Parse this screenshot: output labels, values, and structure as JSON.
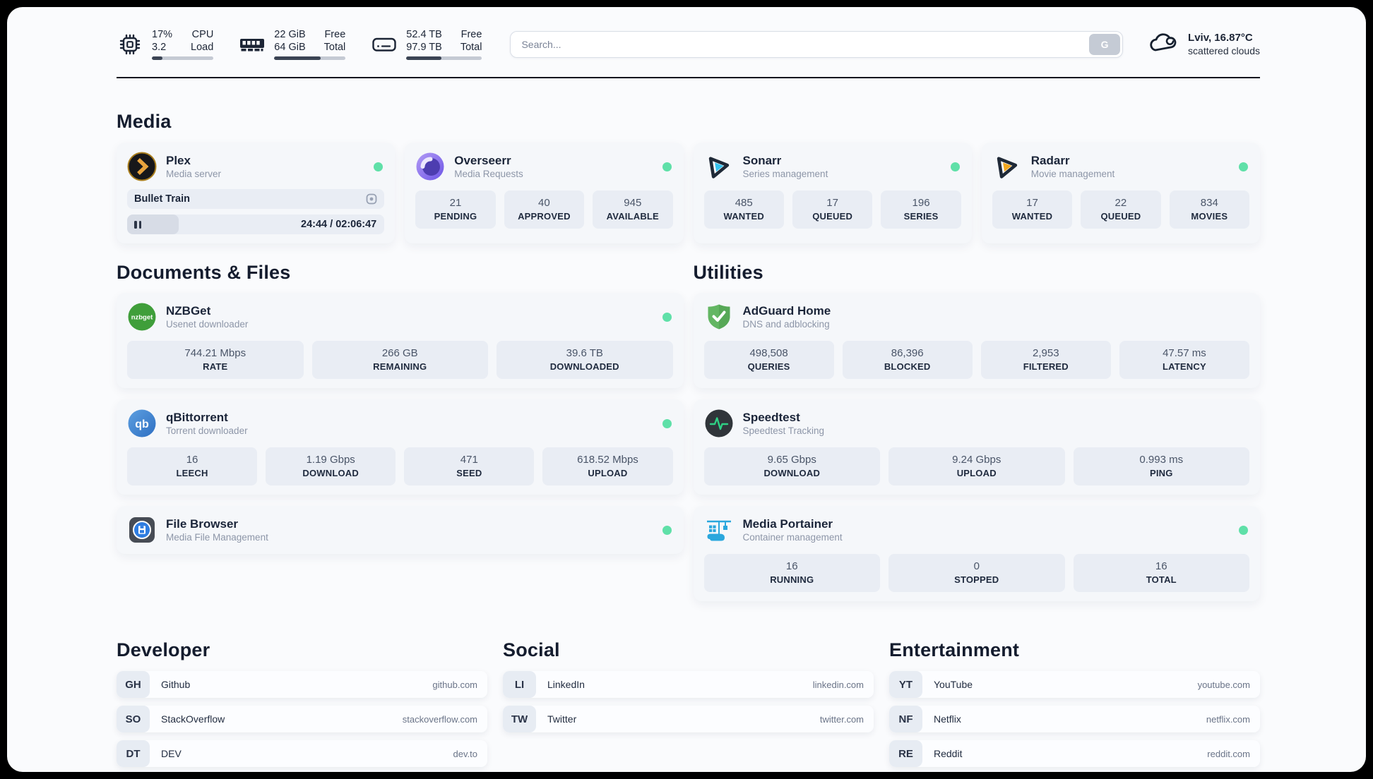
{
  "colors": {
    "page-bg": "#fafbfd",
    "card-bg": "#f5f7fa",
    "tile-bg": "#e9edf4",
    "text-dark": "#1c2536",
    "text-muted": "#8d96a8",
    "status-online": "#5fe0a8",
    "bar-track": "#c5cad4",
    "bar-fill": "#3b4454",
    "divider": "#10151e"
  },
  "header": {
    "stats": [
      {
        "name": "cpu",
        "v1": "17%",
        "v2": "3.2",
        "l1": "CPU",
        "l2": "Load",
        "progress": 17
      },
      {
        "name": "memory",
        "v1": "22 GiB",
        "v2": "64 GiB",
        "l1": "Free",
        "l2": "Total",
        "progress": 65
      },
      {
        "name": "disk",
        "v1": "52.4 TB",
        "v2": "97.9 TB",
        "l1": "Free",
        "l2": "Total",
        "progress": 46
      }
    ],
    "search": {
      "placeholder": "Search...",
      "button_label": "G"
    },
    "weather": {
      "location": "Lviv, 16.87°C",
      "condition": "scattered clouds"
    }
  },
  "media": {
    "title": "Media",
    "plex": {
      "name": "Plex",
      "desc": "Media server",
      "now_playing": "Bullet Train",
      "time": "24:44 / 02:06:47",
      "progress": 20
    },
    "overseerr": {
      "name": "Overseerr",
      "desc": "Media Requests",
      "stats": [
        {
          "value": "21",
          "label": "PENDING"
        },
        {
          "value": "40",
          "label": "APPROVED"
        },
        {
          "value": "945",
          "label": "AVAILABLE"
        }
      ]
    },
    "sonarr": {
      "name": "Sonarr",
      "desc": "Series management",
      "stats": [
        {
          "value": "485",
          "label": "WANTED"
        },
        {
          "value": "17",
          "label": "QUEUED"
        },
        {
          "value": "196",
          "label": "SERIES"
        }
      ]
    },
    "radarr": {
      "name": "Radarr",
      "desc": "Movie management",
      "stats": [
        {
          "value": "17",
          "label": "WANTED"
        },
        {
          "value": "22",
          "label": "QUEUED"
        },
        {
          "value": "834",
          "label": "MOVIES"
        }
      ]
    }
  },
  "documents": {
    "title": "Documents & Files",
    "nzbget": {
      "name": "NZBGet",
      "desc": "Usenet downloader",
      "stats": [
        {
          "value": "744.21 Mbps",
          "label": "RATE"
        },
        {
          "value": "266 GB",
          "label": "REMAINING"
        },
        {
          "value": "39.6 TB",
          "label": "DOWNLOADED"
        }
      ]
    },
    "qbittorrent": {
      "name": "qBittorrent",
      "desc": "Torrent downloader",
      "stats": [
        {
          "value": "16",
          "label": "LEECH"
        },
        {
          "value": "1.19 Gbps",
          "label": "DOWNLOAD"
        },
        {
          "value": "471",
          "label": "SEED"
        },
        {
          "value": "618.52 Mbps",
          "label": "UPLOAD"
        }
      ]
    },
    "filebrowser": {
      "name": "File Browser",
      "desc": "Media File Management"
    }
  },
  "utilities": {
    "title": "Utilities",
    "adguard": {
      "name": "AdGuard Home",
      "desc": "DNS and adblocking",
      "stats": [
        {
          "value": "498,508",
          "label": "QUERIES"
        },
        {
          "value": "86,396",
          "label": "BLOCKED"
        },
        {
          "value": "2,953",
          "label": "FILTERED"
        },
        {
          "value": "47.57 ms",
          "label": "LATENCY"
        }
      ]
    },
    "speedtest": {
      "name": "Speedtest",
      "desc": "Speedtest Tracking",
      "stats": [
        {
          "value": "9.65 Gbps",
          "label": "DOWNLOAD"
        },
        {
          "value": "9.24 Gbps",
          "label": "UPLOAD"
        },
        {
          "value": "0.993 ms",
          "label": "PING"
        }
      ]
    },
    "portainer": {
      "name": "Media Portainer",
      "desc": "Container management",
      "stats": [
        {
          "value": "16",
          "label": "RUNNING"
        },
        {
          "value": "0",
          "label": "STOPPED"
        },
        {
          "value": "16",
          "label": "TOTAL"
        }
      ]
    }
  },
  "bookmarks": {
    "developer": {
      "title": "Developer",
      "items": [
        {
          "abbr": "GH",
          "name": "Github",
          "url": "github.com"
        },
        {
          "abbr": "SO",
          "name": "StackOverflow",
          "url": "stackoverflow.com"
        },
        {
          "abbr": "DT",
          "name": "DEV",
          "url": "dev.to"
        }
      ]
    },
    "social": {
      "title": "Social",
      "items": [
        {
          "abbr": "LI",
          "name": "LinkedIn",
          "url": "linkedin.com"
        },
        {
          "abbr": "TW",
          "name": "Twitter",
          "url": "twitter.com"
        }
      ]
    },
    "entertainment": {
      "title": "Entertainment",
      "items": [
        {
          "abbr": "YT",
          "name": "YouTube",
          "url": "youtube.com"
        },
        {
          "abbr": "NF",
          "name": "Netflix",
          "url": "netflix.com"
        },
        {
          "abbr": "RE",
          "name": "Reddit",
          "url": "reddit.com"
        }
      ]
    }
  }
}
